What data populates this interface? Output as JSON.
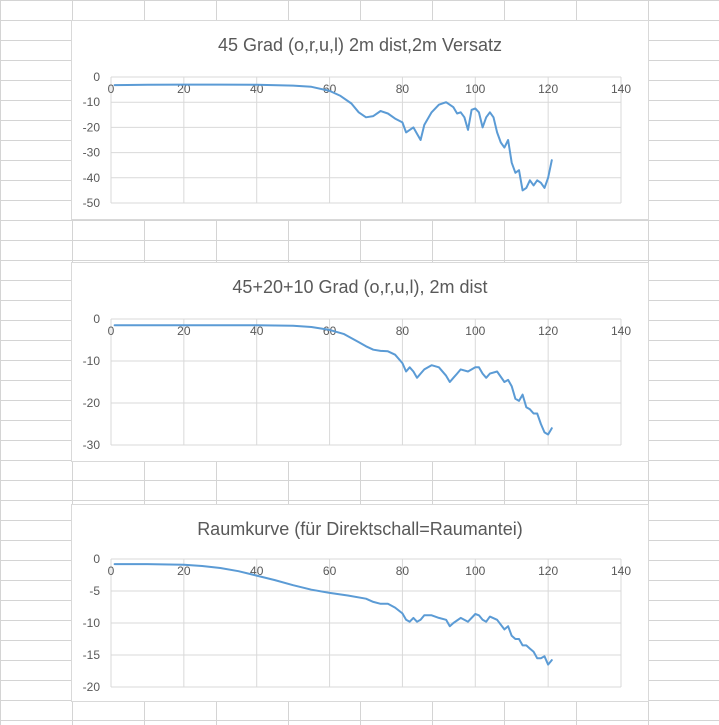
{
  "chart_data": [
    {
      "type": "line",
      "title": "45 Grad (o,r,u,l) 2m dist,2m Versatz",
      "xlabel": "",
      "ylabel": "",
      "xlim": [
        0,
        140
      ],
      "ylim": [
        -50,
        0
      ],
      "xticks": [
        0,
        20,
        40,
        60,
        80,
        100,
        120,
        140
      ],
      "yticks": [
        0,
        -10,
        -20,
        -30,
        -40,
        -50
      ],
      "grid": true,
      "series": [
        {
          "color": "#5b9bd5",
          "x": [
            1,
            10,
            20,
            30,
            40,
            50,
            55,
            60,
            63,
            66,
            68,
            70,
            72,
            74,
            76,
            78,
            80,
            81,
            82,
            83,
            84,
            85,
            86,
            88,
            90,
            92,
            94,
            95,
            96,
            97,
            98,
            99,
            100,
            101,
            102,
            103,
            104,
            105,
            106,
            107,
            108,
            109,
            110,
            111,
            112,
            113,
            114,
            115,
            116,
            117,
            118,
            119,
            120,
            121
          ],
          "y": [
            -3.2,
            -3.1,
            -3.0,
            -3.0,
            -3.1,
            -3.4,
            -3.9,
            -5.5,
            -7.5,
            -10.5,
            -14,
            -16,
            -15.5,
            -13.5,
            -14.5,
            -16.5,
            -18,
            -22,
            -21,
            -20,
            -22.5,
            -25,
            -19,
            -14,
            -11,
            -10,
            -12,
            -14.5,
            -14,
            -16,
            -21,
            -13,
            -12.5,
            -14,
            -20,
            -16,
            -14,
            -16,
            -22,
            -26,
            -28,
            -25,
            -34,
            -38,
            -37,
            -45,
            -44,
            -41,
            -43,
            -41,
            -42,
            -44,
            -40,
            -33
          ]
        }
      ]
    },
    {
      "type": "line",
      "title": "45+20+10 Grad (o,r,u,l), 2m dist",
      "xlabel": "",
      "ylabel": "",
      "xlim": [
        0,
        140
      ],
      "ylim": [
        -30,
        0
      ],
      "xticks": [
        0,
        20,
        40,
        60,
        80,
        100,
        120,
        140
      ],
      "yticks": [
        0,
        -10,
        -20,
        -30
      ],
      "grid": true,
      "series": [
        {
          "color": "#5b9bd5",
          "x": [
            1,
            10,
            20,
            30,
            40,
            50,
            55,
            60,
            64,
            68,
            70,
            72,
            74,
            76,
            78,
            80,
            81,
            82,
            83,
            84,
            85,
            86,
            88,
            90,
            92,
            93,
            94,
            95,
            96,
            98,
            100,
            101,
            102,
            103,
            104,
            106,
            108,
            109,
            110,
            111,
            112,
            113,
            114,
            115,
            116,
            117,
            118,
            119,
            120,
            121
          ],
          "y": [
            -1.5,
            -1.5,
            -1.5,
            -1.5,
            -1.5,
            -1.6,
            -1.9,
            -2.6,
            -3.6,
            -5.5,
            -6.5,
            -7.3,
            -7.6,
            -7.7,
            -8.5,
            -10.5,
            -12.5,
            -11.5,
            -12.5,
            -14,
            -13,
            -12,
            -11,
            -11.5,
            -13.5,
            -15,
            -14,
            -13,
            -12,
            -12.5,
            -11.5,
            -11.5,
            -13,
            -14,
            -13,
            -12.5,
            -15,
            -14.5,
            -16,
            -19,
            -19.5,
            -18,
            -21,
            -21.5,
            -22.5,
            -22.5,
            -25,
            -27,
            -27.5,
            -26
          ]
        }
      ]
    },
    {
      "type": "line",
      "title": "Raumkurve (für Direktschall=Raumantei)",
      "xlabel": "",
      "ylabel": "",
      "xlim": [
        0,
        140
      ],
      "ylim": [
        -20,
        0
      ],
      "xticks": [
        0,
        20,
        40,
        60,
        80,
        100,
        120,
        140
      ],
      "yticks": [
        0,
        -5,
        -10,
        -15,
        -20
      ],
      "grid": true,
      "series": [
        {
          "color": "#5b9bd5",
          "x": [
            1,
            10,
            20,
            25,
            30,
            35,
            40,
            45,
            50,
            55,
            60,
            65,
            70,
            72,
            74,
            76,
            78,
            80,
            81,
            82,
            83,
            84,
            85,
            86,
            88,
            90,
            92,
            93,
            94,
            96,
            98,
            100,
            101,
            102,
            103,
            104,
            106,
            108,
            109,
            110,
            111,
            112,
            113,
            114,
            115,
            116,
            117,
            118,
            119,
            120,
            121
          ],
          "y": [
            -0.8,
            -0.8,
            -0.9,
            -1.1,
            -1.4,
            -1.9,
            -2.6,
            -3.3,
            -4.1,
            -4.8,
            -5.3,
            -5.7,
            -6.2,
            -6.7,
            -7.0,
            -7.0,
            -7.6,
            -8.5,
            -9.5,
            -9.8,
            -9.2,
            -9.8,
            -9.5,
            -8.8,
            -8.8,
            -9.2,
            -9.5,
            -10.5,
            -10,
            -9.2,
            -9.8,
            -8.6,
            -8.8,
            -9.5,
            -9.8,
            -9.0,
            -9.5,
            -11,
            -10.5,
            -12,
            -12.5,
            -12.5,
            -13.5,
            -13.5,
            -14,
            -14.5,
            -15.5,
            -15.5,
            -15.2,
            -16.5,
            -15.8
          ]
        }
      ]
    }
  ]
}
